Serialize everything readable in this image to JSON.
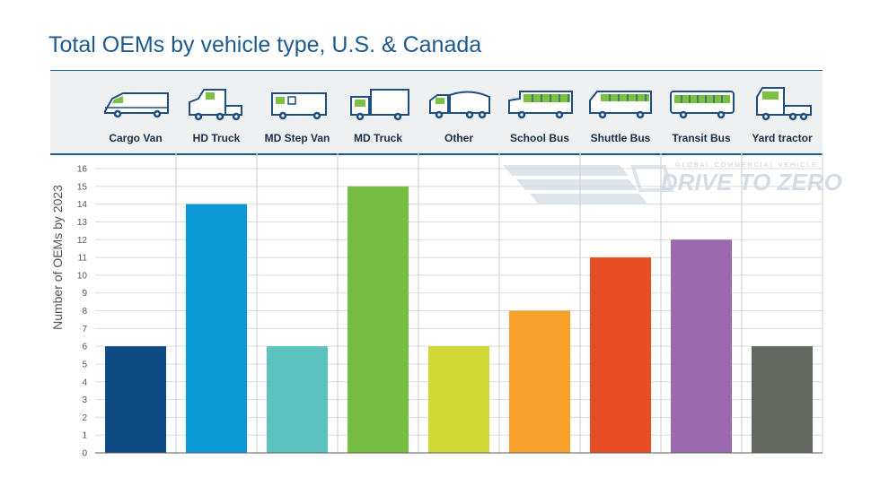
{
  "chart_data": {
    "type": "bar",
    "title": "Total OEMs by vehicle type, U.S. & Canada",
    "ylabel": "Number of OEMs by 2023",
    "xlabel": "",
    "ylim": [
      0,
      16
    ],
    "yticks": [
      0,
      1,
      2,
      3,
      4,
      5,
      6,
      7,
      8,
      9,
      10,
      11,
      12,
      13,
      14,
      15,
      16
    ],
    "grid": true,
    "categories": [
      "Cargo Van",
      "HD Truck",
      "MD Step Van",
      "MD Truck",
      "Other",
      "School Bus",
      "Shuttle Bus",
      "Transit Bus",
      "Yard tractor"
    ],
    "values": [
      6,
      14,
      6,
      15,
      6,
      8,
      11,
      12,
      6
    ],
    "colors": [
      "#0f4c86",
      "#0a98d6",
      "#5bc2c0",
      "#76be43",
      "#cfd835",
      "#f7a02a",
      "#e84e24",
      "#9b6aae",
      "#626760"
    ],
    "icons": [
      "cargo-van-icon",
      "hd-truck-icon",
      "md-step-van-icon",
      "md-truck-icon",
      "other-vehicle-icon",
      "school-bus-icon",
      "shuttle-bus-icon",
      "transit-bus-icon",
      "yard-tractor-icon"
    ]
  },
  "watermark": {
    "line1": "GLOBAL COMMERCIAL VEHICLE",
    "line2": "DRIVE TO ZERO"
  }
}
